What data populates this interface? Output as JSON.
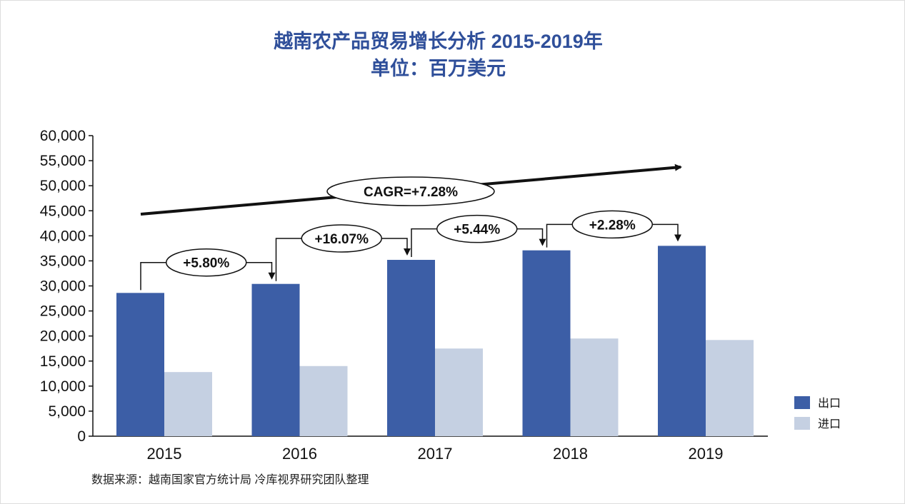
{
  "chart_data": {
    "type": "bar",
    "title": "越南农产品贸易增长分析  2015-2019年",
    "subtitle": "单位：百万美元",
    "categories": [
      "2015",
      "2016",
      "2017",
      "2018",
      "2019"
    ],
    "series": [
      {
        "name": "出口",
        "color": "#3c5ea6",
        "values": [
          28600,
          30400,
          35200,
          37100,
          38000
        ]
      },
      {
        "name": "进口",
        "color": "#c5d0e2",
        "values": [
          12800,
          14000,
          17500,
          19500,
          19200
        ]
      }
    ],
    "ylim": [
      0,
      60000
    ],
    "yticks": [
      "0",
      "5,000",
      "10,000",
      "15,000",
      "20,000",
      "25,000",
      "30,000",
      "35,000",
      "40,000",
      "45,000",
      "50,000",
      "55,000",
      "60,000"
    ],
    "growth_annotations": [
      "+5.80%",
      "+16.07%",
      "+5.44%",
      "+2.28%"
    ],
    "cagr_annotation": "CAGR=+7.28%",
    "legend_placement": "bottom-right",
    "grid": false
  },
  "source": "数据来源：越南国家官方统计局  冷库视界研究团队整理"
}
